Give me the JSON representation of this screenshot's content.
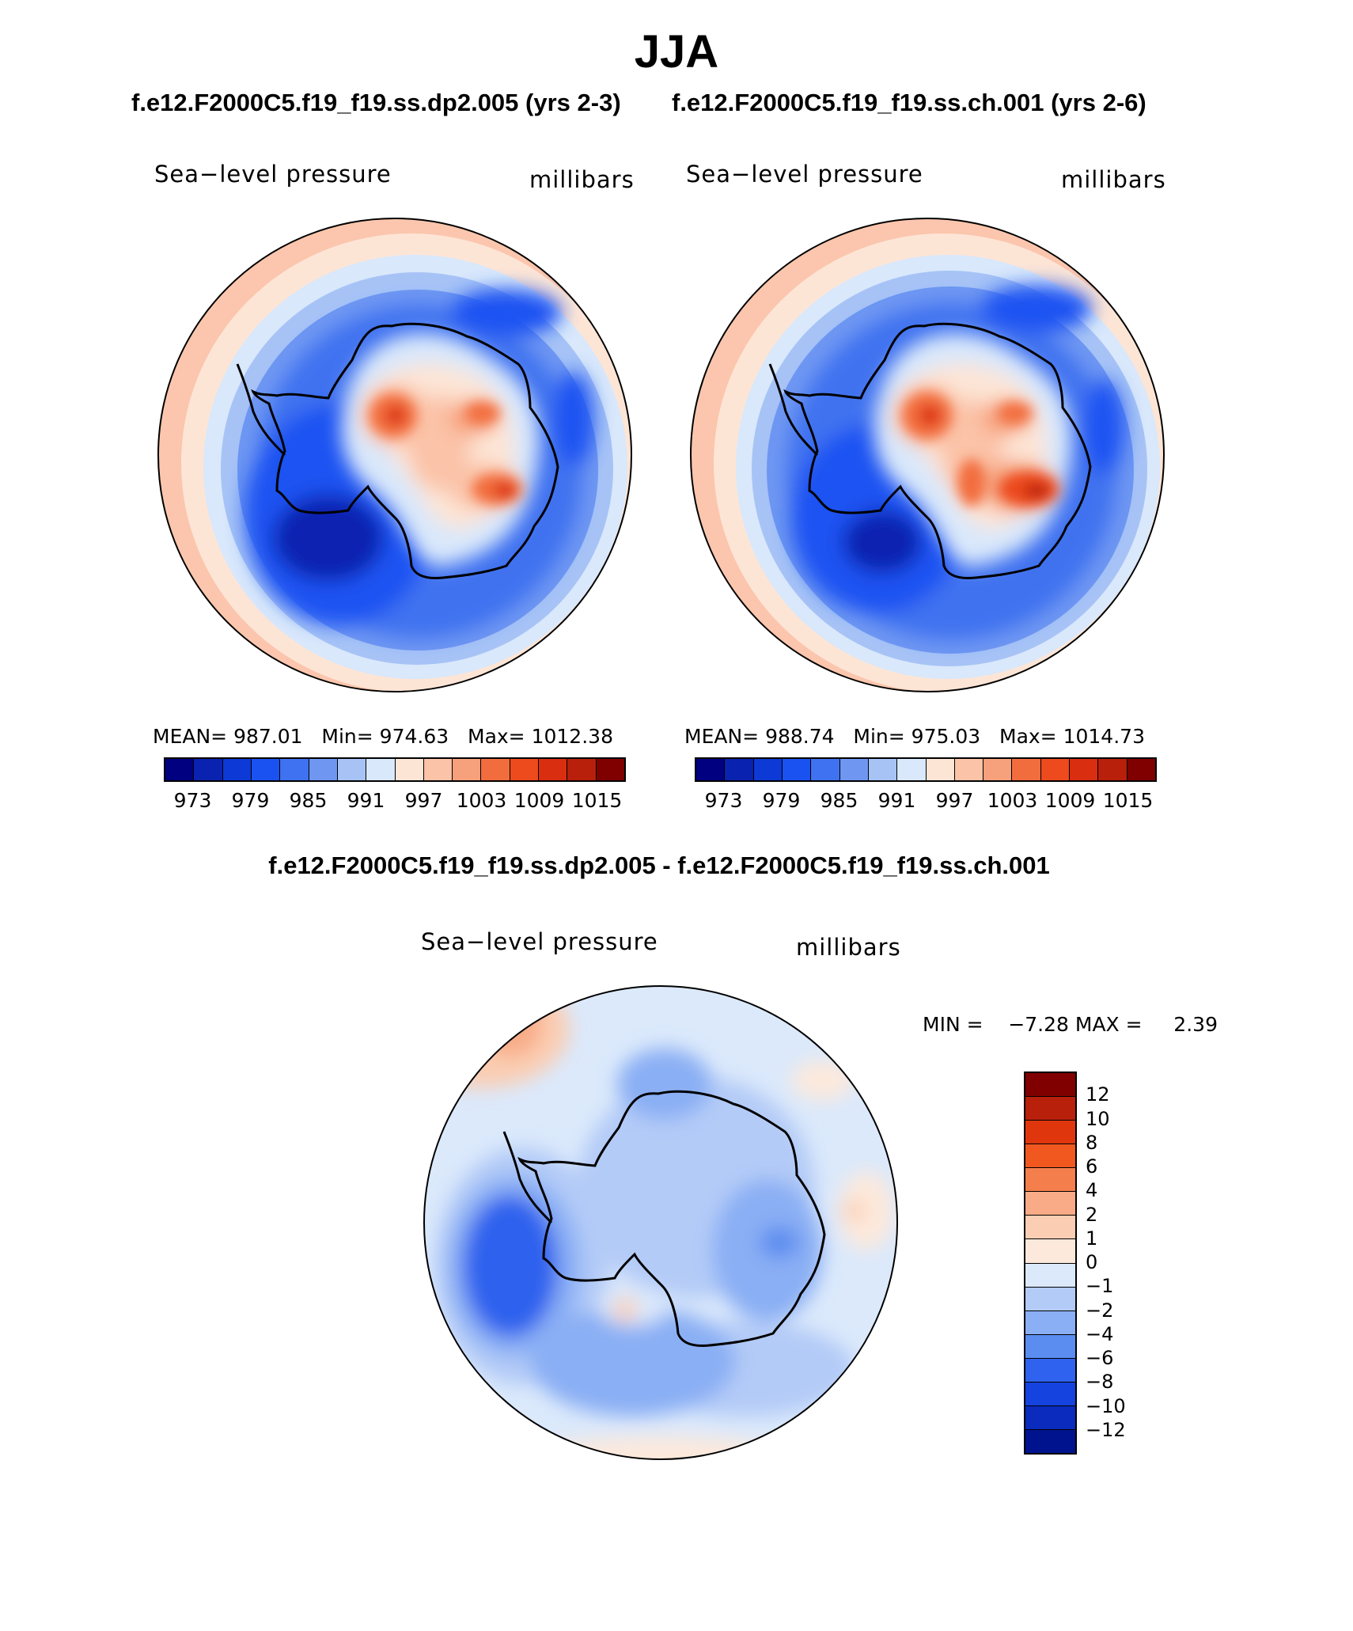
{
  "title": "JJA",
  "panel_left": {
    "case_title": "f.e12.F2000C5.f19_f19.ss.dp2.005 (yrs 2-3)",
    "variable": "Sea−level pressure",
    "units": "millibars",
    "stats": {
      "mean_label": "MEAN=",
      "mean": "987.01",
      "min_label": "Min=",
      "min": "974.63",
      "max_label": "Max=",
      "max": "1012.38"
    }
  },
  "panel_right": {
    "case_title": "f.e12.F2000C5.f19_f19.ss.ch.001 (yrs 2-6)",
    "variable": "Sea−level pressure",
    "units": "millibars",
    "stats": {
      "mean_label": "MEAN=",
      "mean": "988.74",
      "min_label": "Min=",
      "min": "975.03",
      "max_label": "Max=",
      "max": "1014.73"
    }
  },
  "panel_diff": {
    "case_title": "f.e12.F2000C5.f19_f19.ss.dp2.005 - f.e12.F2000C5.f19_f19.ss.ch.001",
    "variable": "Sea−level pressure",
    "units": "millibars",
    "minmax_text": "MIN =    −7.28 MAX =     2.39"
  },
  "abs_colorbar": {
    "colors": [
      "#000080",
      "#0a22b0",
      "#0d3ad6",
      "#1a52f2",
      "#3f72f0",
      "#6f97f2",
      "#a7c3f6",
      "#d9e8fb",
      "#fde5d6",
      "#fbc3a8",
      "#f6a07c",
      "#f26d3e",
      "#ed4a1e",
      "#d92e10",
      "#b8200b",
      "#800000"
    ],
    "ticks": [
      "973",
      "979",
      "985",
      "991",
      "997",
      "1003",
      "1009",
      "1015"
    ]
  },
  "diff_colorbar": {
    "colors": [
      "#800000",
      "#b8200b",
      "#e0360e",
      "#f0581f",
      "#f57e4d",
      "#f8ab86",
      "#fbcdb2",
      "#fde9dc",
      "#dbe9fb",
      "#b3cbf7",
      "#8aaff4",
      "#5b8df0",
      "#2f62ee",
      "#1543e0",
      "#0a2bbd",
      "#00138f"
    ],
    "ticks": [
      "12",
      "10",
      "8",
      "6",
      "4",
      "2",
      "1",
      "0",
      "−1",
      "−2",
      "−4",
      "−6",
      "−8",
      "−10",
      "−12"
    ]
  },
  "chart_data": [
    {
      "type": "heatmap",
      "title": "f.e12.F2000C5.f19_f19.ss.dp2.005 (yrs 2-3)",
      "variable": "Sea-level pressure",
      "units": "millibars",
      "projection": "south polar stereographic",
      "mean": 987.01,
      "min": 974.63,
      "max": 1012.38,
      "levels": [
        973,
        976,
        979,
        982,
        985,
        988,
        991,
        994,
        997,
        1000,
        1003,
        1006,
        1009,
        1012,
        1015
      ]
    },
    {
      "type": "heatmap",
      "title": "f.e12.F2000C5.f19_f19.ss.ch.001 (yrs 2-6)",
      "variable": "Sea-level pressure",
      "units": "millibars",
      "projection": "south polar stereographic",
      "mean": 988.74,
      "min": 975.03,
      "max": 1014.73,
      "levels": [
        973,
        976,
        979,
        982,
        985,
        988,
        991,
        994,
        997,
        1000,
        1003,
        1006,
        1009,
        1012,
        1015
      ]
    },
    {
      "type": "heatmap",
      "title": "f.e12.F2000C5.f19_f19.ss.dp2.005 - f.e12.F2000C5.f19_f19.ss.ch.001",
      "variable": "Sea-level pressure",
      "units": "millibars",
      "projection": "south polar stereographic",
      "min": -7.28,
      "max": 2.39,
      "levels": [
        -12,
        -10,
        -8,
        -6,
        -4,
        -2,
        -1,
        0,
        1,
        2,
        4,
        6,
        8,
        10,
        12
      ]
    }
  ]
}
